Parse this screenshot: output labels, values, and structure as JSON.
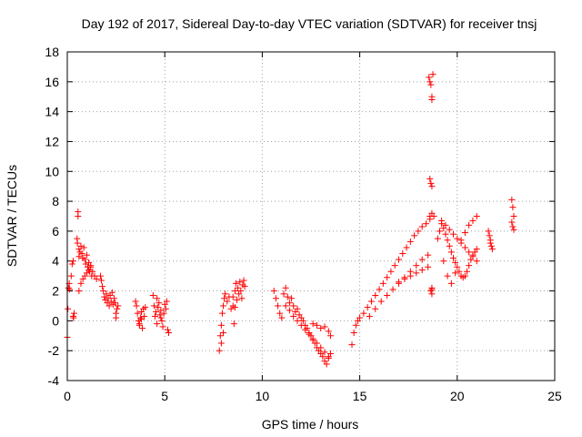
{
  "chart_data": {
    "type": "scatter",
    "title": "Day 192 of 2017, Sidereal Day-to-day VTEC variation (SDTVAR) for receiver tnsj",
    "xlabel": "GPS time / hours",
    "ylabel": "SDTVAR / TECUs",
    "xlim": [
      0,
      25
    ],
    "ylim": [
      -4,
      18
    ],
    "xticks": [
      0,
      5,
      10,
      15,
      20,
      25
    ],
    "yticks": [
      -4,
      -2,
      0,
      2,
      4,
      6,
      8,
      10,
      12,
      14,
      16,
      18
    ],
    "grid": true,
    "marker": "+",
    "marker_color": "#ff0000",
    "series": [
      {
        "name": "tnsj",
        "x": [
          0.0,
          0.03,
          0.06,
          0.1,
          0.12,
          0.2,
          0.25,
          0.3,
          0.3,
          0.32,
          0.35,
          0.5,
          0.52,
          0.55,
          0.55,
          0.6,
          0.6,
          0.65,
          0.7,
          0.75,
          0.8,
          0.85,
          0.9,
          0.95,
          1.0,
          1.05,
          1.1,
          1.15,
          1.2,
          1.25,
          0.6,
          0.7,
          0.8,
          0.9,
          1.0,
          1.1,
          1.2,
          1.3,
          1.4,
          1.5,
          1.7,
          1.75,
          1.8,
          1.85,
          1.9,
          1.95,
          2.0,
          2.05,
          2.1,
          2.15,
          2.2,
          2.25,
          2.3,
          2.35,
          2.4,
          2.45,
          2.5,
          2.5,
          2.55,
          2.6,
          3.5,
          3.55,
          3.6,
          3.65,
          3.7,
          3.75,
          3.8,
          3.85,
          3.9,
          3.95,
          4.0,
          3.7,
          3.8,
          4.4,
          4.45,
          4.5,
          4.55,
          4.6,
          4.65,
          4.7,
          4.75,
          4.8,
          4.85,
          4.9,
          4.95,
          5.0,
          5.05,
          5.1,
          5.15,
          5.2,
          4.6,
          4.8,
          7.8,
          7.85,
          7.9,
          7.95,
          8.0,
          8.05,
          8.1,
          7.9,
          8.0,
          8.2,
          8.3,
          8.4,
          8.5,
          8.55,
          8.6,
          8.65,
          8.7,
          8.75,
          8.8,
          8.85,
          8.9,
          8.95,
          9.0,
          9.05,
          9.1,
          8.5,
          8.6,
          10.6,
          10.7,
          10.8,
          10.9,
          11.0,
          11.1,
          11.2,
          11.3,
          11.4,
          11.5,
          11.6,
          11.7,
          11.8,
          11.9,
          12.0,
          12.1,
          12.2,
          12.3,
          12.4,
          12.5,
          12.6,
          12.7,
          12.8,
          12.9,
          13.0,
          13.1,
          13.2,
          13.3,
          13.4,
          13.5,
          11.2,
          11.4,
          11.6,
          11.8,
          12.0,
          12.2,
          12.4,
          12.6,
          12.8,
          13.0,
          13.2,
          13.4,
          12.6,
          12.8,
          13.0,
          13.2,
          13.4,
          13.5,
          14.6,
          14.7,
          14.8,
          14.9,
          15.0,
          15.2,
          15.4,
          15.6,
          15.8,
          16.0,
          16.2,
          16.4,
          16.6,
          16.8,
          17.0,
          17.2,
          17.4,
          17.6,
          17.8,
          18.0,
          18.2,
          18.4,
          18.6,
          18.8,
          15.5,
          15.8,
          16.1,
          16.4,
          16.7,
          17.0,
          17.3,
          17.6,
          17.9,
          18.2,
          18.5,
          17.0,
          17.3,
          17.6,
          17.9,
          18.2,
          18.5,
          18.55,
          18.6,
          18.65,
          18.7,
          18.7,
          18.75,
          18.6,
          18.7,
          18.6,
          18.65,
          18.7,
          18.7,
          18.65,
          18.7,
          18.7,
          19.0,
          19.1,
          19.2,
          19.3,
          19.4,
          19.5,
          19.6,
          19.7,
          19.8,
          19.9,
          20.0,
          20.1,
          20.2,
          20.3,
          20.4,
          20.5,
          20.6,
          20.7,
          20.8,
          20.9,
          21.0,
          19.2,
          19.4,
          19.6,
          19.8,
          20.0,
          20.2,
          20.4,
          20.6,
          20.8,
          21.0,
          19.3,
          19.5,
          19.7,
          19.9,
          20.2,
          20.4,
          20.6,
          20.8,
          21.0,
          21.6,
          21.65,
          21.7,
          21.75,
          21.8,
          21.7,
          22.8,
          22.85,
          22.9,
          22.8,
          22.85,
          22.9
        ],
        "y": [
          -1.1,
          0.8,
          2.2,
          2.5,
          2.1,
          3.0,
          3.8,
          4.0,
          0.3,
          0.2,
          0.5,
          5.5,
          5.2,
          7.3,
          7.0,
          4.8,
          4.3,
          4.6,
          5.0,
          4.5,
          4.2,
          4.9,
          4.1,
          3.8,
          4.4,
          3.6,
          3.9,
          3.3,
          3.7,
          3.0,
          2.0,
          2.5,
          2.8,
          3.0,
          3.2,
          3.4,
          3.6,
          3.3,
          3.0,
          2.8,
          3.0,
          2.7,
          2.3,
          2.0,
          1.6,
          1.4,
          1.8,
          1.2,
          1.5,
          1.0,
          1.7,
          1.3,
          1.9,
          1.1,
          1.5,
          1.2,
          0.5,
          0.2,
          0.8,
          1.0,
          1.3,
          1.0,
          0.5,
          0.0,
          -0.3,
          0.2,
          0.6,
          -0.5,
          0.8,
          0.3,
          0.9,
          -0.2,
          0.1,
          1.7,
          1.0,
          0.3,
          0.6,
          -0.2,
          0.9,
          1.2,
          0.4,
          0.7,
          0.0,
          -0.4,
          0.5,
          1.1,
          0.8,
          1.3,
          -0.6,
          -0.8,
          1.5,
          0.2,
          -2.0,
          -1.0,
          -0.3,
          0.5,
          1.0,
          1.5,
          1.8,
          -1.5,
          -0.8,
          1.3,
          1.6,
          0.8,
          1.0,
          -0.2,
          2.0,
          2.5,
          1.4,
          2.2,
          1.8,
          2.6,
          2.0,
          1.5,
          2.4,
          2.7,
          2.3,
          1.6,
          0.9,
          2.0,
          1.5,
          1.0,
          0.5,
          0.2,
          1.8,
          2.2,
          1.6,
          1.2,
          1.5,
          1.0,
          0.6,
          0.8,
          0.4,
          0.2,
          0.0,
          -0.3,
          -0.5,
          -0.8,
          -1.0,
          -1.3,
          -1.5,
          -1.8,
          -2.0,
          -2.2,
          -2.4,
          -2.7,
          -2.9,
          -2.5,
          -2.2,
          1.0,
          0.7,
          0.3,
          0.0,
          -0.3,
          -0.6,
          -0.9,
          -1.2,
          -1.5,
          -1.8,
          -2.1,
          -2.4,
          -0.2,
          -0.3,
          -0.5,
          -0.4,
          -0.7,
          -1.0,
          -1.6,
          -0.8,
          -0.3,
          0.0,
          0.2,
          0.5,
          0.9,
          1.3,
          1.7,
          2.1,
          2.5,
          2.9,
          3.3,
          3.7,
          4.1,
          4.5,
          4.9,
          5.3,
          5.7,
          6.0,
          6.3,
          6.5,
          6.8,
          7.0,
          0.3,
          0.8,
          1.3,
          1.7,
          2.1,
          2.5,
          2.9,
          3.3,
          3.7,
          4.1,
          4.4,
          2.6,
          2.8,
          3.0,
          3.2,
          3.4,
          3.6,
          16.3,
          16.0,
          15.8,
          15.0,
          14.8,
          16.5,
          7.0,
          7.2,
          9.5,
          9.2,
          9.0,
          2.1,
          2.0,
          1.8,
          2.2,
          5.5,
          6.0,
          6.5,
          6.2,
          5.8,
          5.4,
          5.0,
          4.6,
          4.2,
          3.9,
          3.6,
          3.3,
          3.0,
          2.9,
          3.0,
          3.3,
          3.7,
          4.1,
          4.4,
          4.6,
          4.8,
          6.7,
          6.4,
          6.1,
          5.8,
          5.5,
          5.2,
          4.9,
          4.6,
          4.3,
          4.0,
          4.0,
          3.0,
          2.5,
          3.2,
          5.4,
          5.9,
          6.4,
          6.7,
          7.0,
          6.0,
          5.7,
          5.4,
          5.0,
          4.8,
          5.2,
          8.1,
          7.6,
          7.0,
          6.6,
          6.3,
          6.1
        ]
      }
    ]
  }
}
